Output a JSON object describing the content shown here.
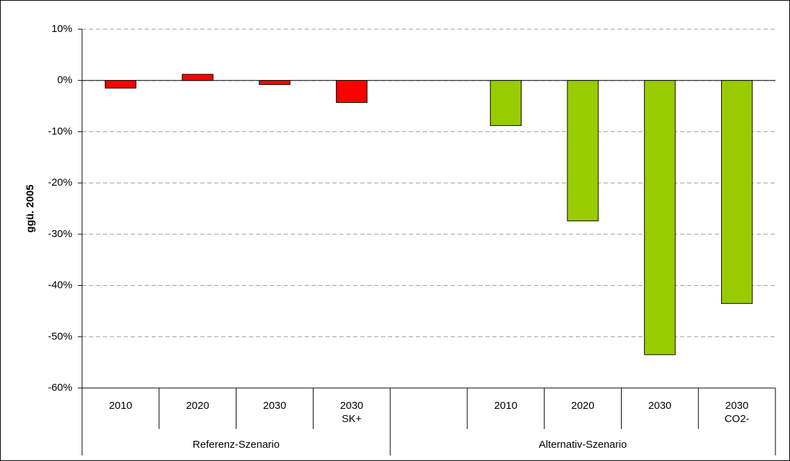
{
  "chart_data": {
    "type": "bar",
    "y_label": "ggü. 2005",
    "groups": [
      {
        "name": "Referenz-Szenario",
        "color": "#ff0000",
        "categories": [
          "2010",
          "2020",
          "2030",
          "2030\nSK+"
        ],
        "values": [
          -1.5,
          1.2,
          -0.8,
          -4.3
        ]
      },
      {
        "name": "Alternativ-Szenario",
        "color": "#99cc00",
        "categories": [
          null,
          "2010",
          "2020",
          "2030",
          "2030\nCO2-"
        ],
        "values": [
          null,
          -8.8,
          -27.4,
          -53.5,
          -43.5
        ]
      }
    ],
    "ylim": [
      -60,
      10
    ],
    "yticks": [
      {
        "value": -60,
        "label": "-60%"
      },
      {
        "value": -50,
        "label": "-50%"
      },
      {
        "value": -40,
        "label": "-40%"
      },
      {
        "value": -30,
        "label": "-30%"
      },
      {
        "value": -20,
        "label": "-20%"
      },
      {
        "value": -10,
        "label": "-10%"
      },
      {
        "value": 0,
        "label": "0%"
      },
      {
        "value": 10,
        "label": "10%"
      }
    ],
    "grid": true
  }
}
